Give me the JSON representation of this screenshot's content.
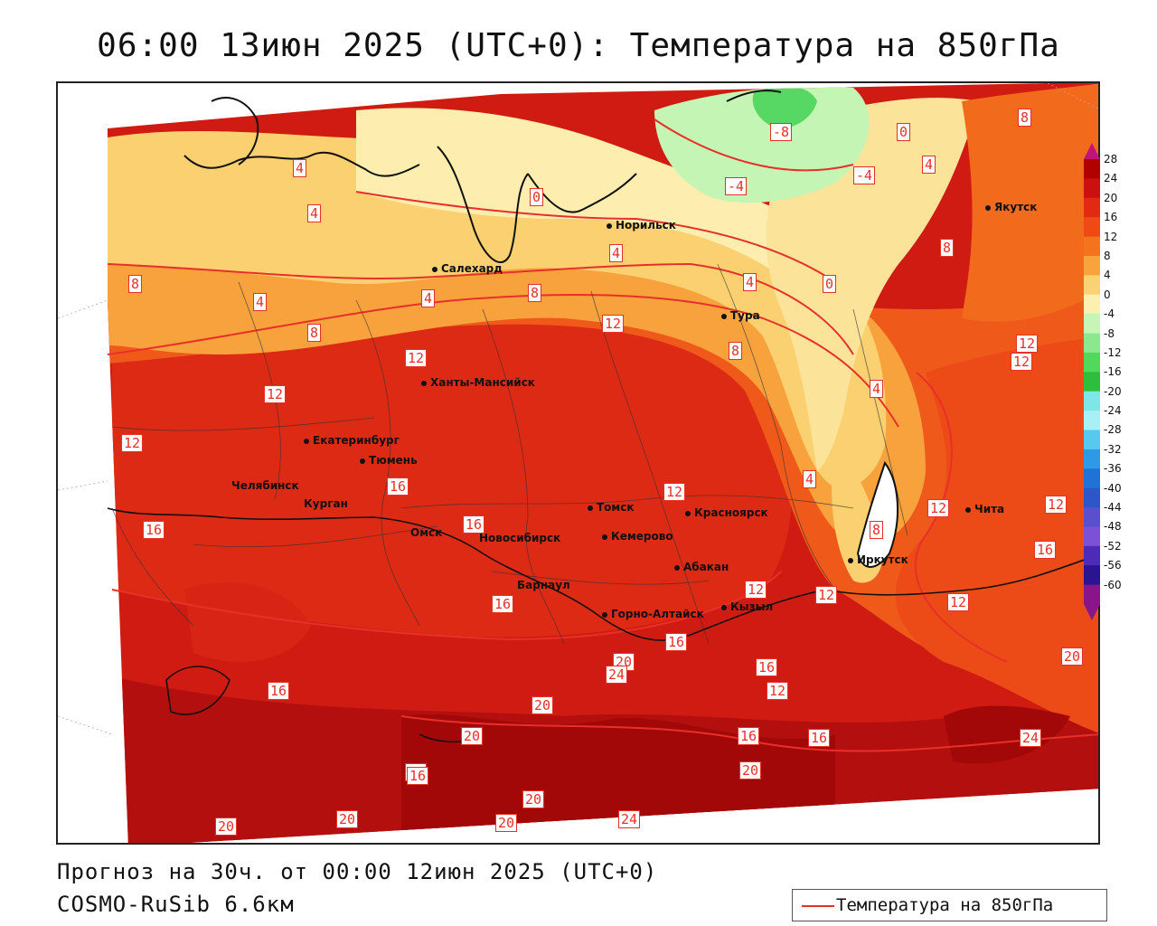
{
  "title": "06:00 13июн 2025 (UTC+0): Температура на 850гПа",
  "forecast_line": "Прогноз на 30ч. от 00:00 12июн 2025 (UTC+0)",
  "model_line": "COSMO-RuSib 6.6км",
  "legend_label": "Температура на 850гПа",
  "colors": {
    "isoline": "#e8302a",
    "warm_dark": "#b40f0f",
    "warm": "#e0321c",
    "orange": "#f26a1c",
    "light_orange": "#f9a942",
    "yellow": "#fbd87a",
    "pale_yellow": "#fdf0b4",
    "light_green": "#c5f5b5",
    "green": "#57d864"
  },
  "colorbar": {
    "labels": [
      "28",
      "24",
      "20",
      "16",
      "12",
      "8",
      "4",
      "0",
      "-4",
      "-8",
      "-12",
      "-16",
      "-20",
      "-24",
      "-28",
      "-32",
      "-36",
      "-40",
      "-44",
      "-48",
      "-52",
      "-56",
      "-60"
    ],
    "colors": [
      "#b00000",
      "#cc1010",
      "#e02a12",
      "#ef4a16",
      "#f4731c",
      "#f8a33c",
      "#fad276",
      "#fbf0b0",
      "#c6f5b6",
      "#8ce88c",
      "#52d85a",
      "#2fbe3c",
      "#7fe6e8",
      "#a7f0f5",
      "#57c8f0",
      "#2e9ae6",
      "#1f73d6",
      "#2d56c8",
      "#5a4fcc",
      "#7b52d6",
      "#4d2ab8",
      "#2a1490",
      "#8a148a"
    ]
  },
  "cities": [
    {
      "name": "Норильск"
    },
    {
      "name": "Якутск"
    },
    {
      "name": "Салехард"
    },
    {
      "name": "Тура"
    },
    {
      "name": "Ханты-Мансийск"
    },
    {
      "name": "Екатеринбург"
    },
    {
      "name": "Тюмень"
    },
    {
      "name": "Челябинск"
    },
    {
      "name": "Курган"
    },
    {
      "name": "Омск"
    },
    {
      "name": "Новосибирск"
    },
    {
      "name": "Томск"
    },
    {
      "name": "Кемерово"
    },
    {
      "name": "Красноярск"
    },
    {
      "name": "Абакан"
    },
    {
      "name": "Барнаул"
    },
    {
      "name": "Горно-Алтайск"
    },
    {
      "name": "Кызыл"
    },
    {
      "name": "Иркутск"
    },
    {
      "name": "Чита"
    }
  ],
  "isolabels": [
    {
      "v": "-8"
    },
    {
      "v": "0"
    },
    {
      "v": "8"
    },
    {
      "v": "-4"
    },
    {
      "v": "4"
    },
    {
      "v": "-4"
    },
    {
      "v": "4"
    },
    {
      "v": "4"
    },
    {
      "v": "0"
    },
    {
      "v": "4"
    },
    {
      "v": "8"
    },
    {
      "v": "8"
    },
    {
      "v": "4"
    },
    {
      "v": "4"
    },
    {
      "v": "8"
    },
    {
      "v": "4"
    },
    {
      "v": "0"
    },
    {
      "v": "12"
    },
    {
      "v": "8"
    },
    {
      "v": "12"
    },
    {
      "v": "12"
    },
    {
      "v": "12"
    },
    {
      "v": "12"
    },
    {
      "v": "8"
    },
    {
      "v": "4"
    },
    {
      "v": "12"
    },
    {
      "v": "4"
    },
    {
      "v": "16"
    },
    {
      "v": "16"
    },
    {
      "v": "16"
    },
    {
      "v": "12"
    },
    {
      "v": "12"
    },
    {
      "v": "12"
    },
    {
      "v": "8"
    },
    {
      "v": "16"
    },
    {
      "v": "12"
    },
    {
      "v": "12"
    },
    {
      "v": "16"
    },
    {
      "v": "16"
    },
    {
      "v": "20"
    },
    {
      "v": "16"
    },
    {
      "v": "12"
    },
    {
      "v": "20"
    },
    {
      "v": "12"
    },
    {
      "v": "16"
    },
    {
      "v": "20"
    },
    {
      "v": "20"
    },
    {
      "v": "16"
    },
    {
      "v": "16"
    },
    {
      "v": "24"
    },
    {
      "v": "20"
    },
    {
      "v": "16"
    },
    {
      "v": "20"
    },
    {
      "v": "20"
    },
    {
      "v": "20"
    },
    {
      "v": "20"
    },
    {
      "v": "24"
    },
    {
      "v": "24"
    },
    {
      "v": "16"
    }
  ]
}
